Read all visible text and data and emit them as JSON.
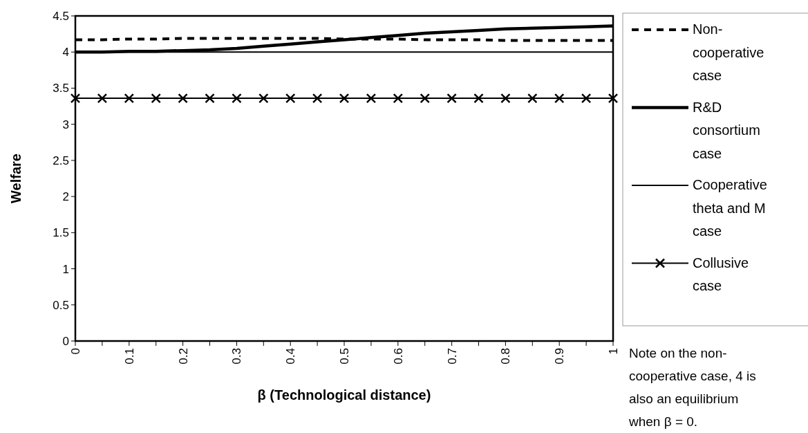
{
  "chart_data": {
    "type": "line",
    "xlabel": "β (Technological distance)",
    "ylabel": "Welfare",
    "x": [
      0,
      0.05,
      0.1,
      0.15,
      0.2,
      0.25,
      0.3,
      0.35,
      0.4,
      0.45,
      0.5,
      0.55,
      0.6,
      0.65,
      0.7,
      0.75,
      0.8,
      0.85,
      0.9,
      0.95,
      1
    ],
    "series": [
      {
        "name": "Non-cooperative case",
        "color": "#000000",
        "line_style": "dashed",
        "marker": "none",
        "values": [
          4.17,
          4.17,
          4.18,
          4.18,
          4.19,
          4.19,
          4.19,
          4.19,
          4.19,
          4.19,
          4.18,
          4.18,
          4.18,
          4.17,
          4.17,
          4.17,
          4.16,
          4.16,
          4.16,
          4.16,
          4.16
        ]
      },
      {
        "name": "R&D consortium case",
        "color": "#000000",
        "line_style": "solid",
        "marker": "none",
        "values": [
          4.0,
          4.0,
          4.01,
          4.01,
          4.02,
          4.03,
          4.05,
          4.08,
          4.11,
          4.14,
          4.17,
          4.2,
          4.23,
          4.26,
          4.28,
          4.3,
          4.32,
          4.33,
          4.34,
          4.35,
          4.36
        ]
      },
      {
        "name": "Cooperative theta and M case",
        "color": "#000000",
        "line_style": "solid",
        "marker": "none",
        "values": [
          4,
          4,
          4,
          4,
          4,
          4,
          4,
          4,
          4,
          4,
          4,
          4,
          4,
          4,
          4,
          4,
          4,
          4,
          4,
          4,
          4
        ]
      },
      {
        "name": "Collusive case",
        "color": "#000000",
        "line_style": "solid",
        "marker": "cross",
        "values": [
          3.36,
          3.36,
          3.36,
          3.36,
          3.36,
          3.36,
          3.36,
          3.36,
          3.36,
          3.36,
          3.36,
          3.36,
          3.36,
          3.36,
          3.36,
          3.36,
          3.36,
          3.36,
          3.36,
          3.36,
          3.36
        ]
      }
    ],
    "xlim": [
      0,
      1
    ],
    "xticks": [
      0,
      {
        "value": 0.05,
        "label": null
      },
      0.1,
      {
        "value": 0.15,
        "label": null
      },
      0.2,
      {
        "value": 0.25,
        "label": null
      },
      0.3,
      {
        "value": 0.35,
        "label": null
      },
      0.4,
      {
        "value": 0.45,
        "label": null
      },
      0.5,
      {
        "value": 0.55,
        "label": null
      },
      0.6,
      {
        "value": 0.65,
        "label": null
      },
      0.7,
      {
        "value": 0.75,
        "label": null
      },
      0.8,
      {
        "value": 0.85,
        "label": null
      },
      0.9,
      {
        "value": 0.95,
        "label": null
      },
      1
    ],
    "ylim": [
      0,
      4.5
    ],
    "yticks": [
      0,
      0.5,
      1,
      1.5,
      2,
      2.5,
      3,
      3.5,
      4,
      4.5
    ],
    "grid": false,
    "legend": "right",
    "annotations": [
      "Note on the non-cooperative case, 4 is also an equilibrium when β = 0."
    ]
  }
}
